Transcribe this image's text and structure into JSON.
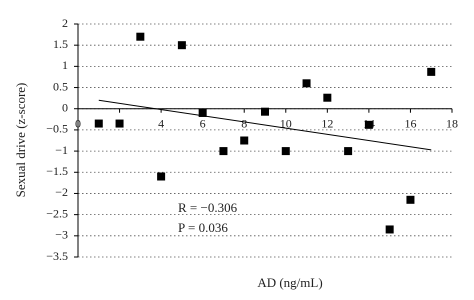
{
  "chart_data": {
    "type": "scatter",
    "x_label": "AD (ng/mL)",
    "y_label": "Sexual drive (z-score)",
    "x": [
      1,
      2,
      3,
      4,
      5,
      6,
      7,
      8,
      9,
      10,
      11,
      12,
      13,
      14,
      15,
      16,
      17
    ],
    "values": [
      -0.35,
      -0.35,
      1.7,
      -1.6,
      1.5,
      -0.1,
      -1,
      -0.75,
      -0.07,
      -1,
      0.6,
      0.26,
      -1,
      -0.38,
      -2.85,
      -2.15,
      0.87
    ],
    "color": "#000000",
    "trendline": {
      "x": [
        1,
        17
      ],
      "y": [
        0.2,
        -0.97
      ]
    },
    "xlim": [
      0,
      18
    ],
    "xticks": [
      0,
      2,
      4,
      6,
      8,
      10,
      12,
      14,
      16,
      18
    ],
    "ylim": [
      -3.5,
      2
    ],
    "yticks": [
      {
        "value": -3.5,
        "label": "−3.5"
      },
      {
        "value": -3,
        "label": "−3"
      },
      {
        "value": -2.5,
        "label": "−2.5"
      },
      {
        "value": -2,
        "label": "−2"
      },
      {
        "value": -1.5,
        "label": "−1.5"
      },
      {
        "value": -1,
        "label": "−1"
      },
      {
        "value": -0.5,
        "label": "−0.5"
      },
      0,
      0.5,
      1,
      1.5,
      2
    ],
    "grid": true,
    "annotations": [
      "R = −0.306",
      "P = 0.036"
    ]
  }
}
